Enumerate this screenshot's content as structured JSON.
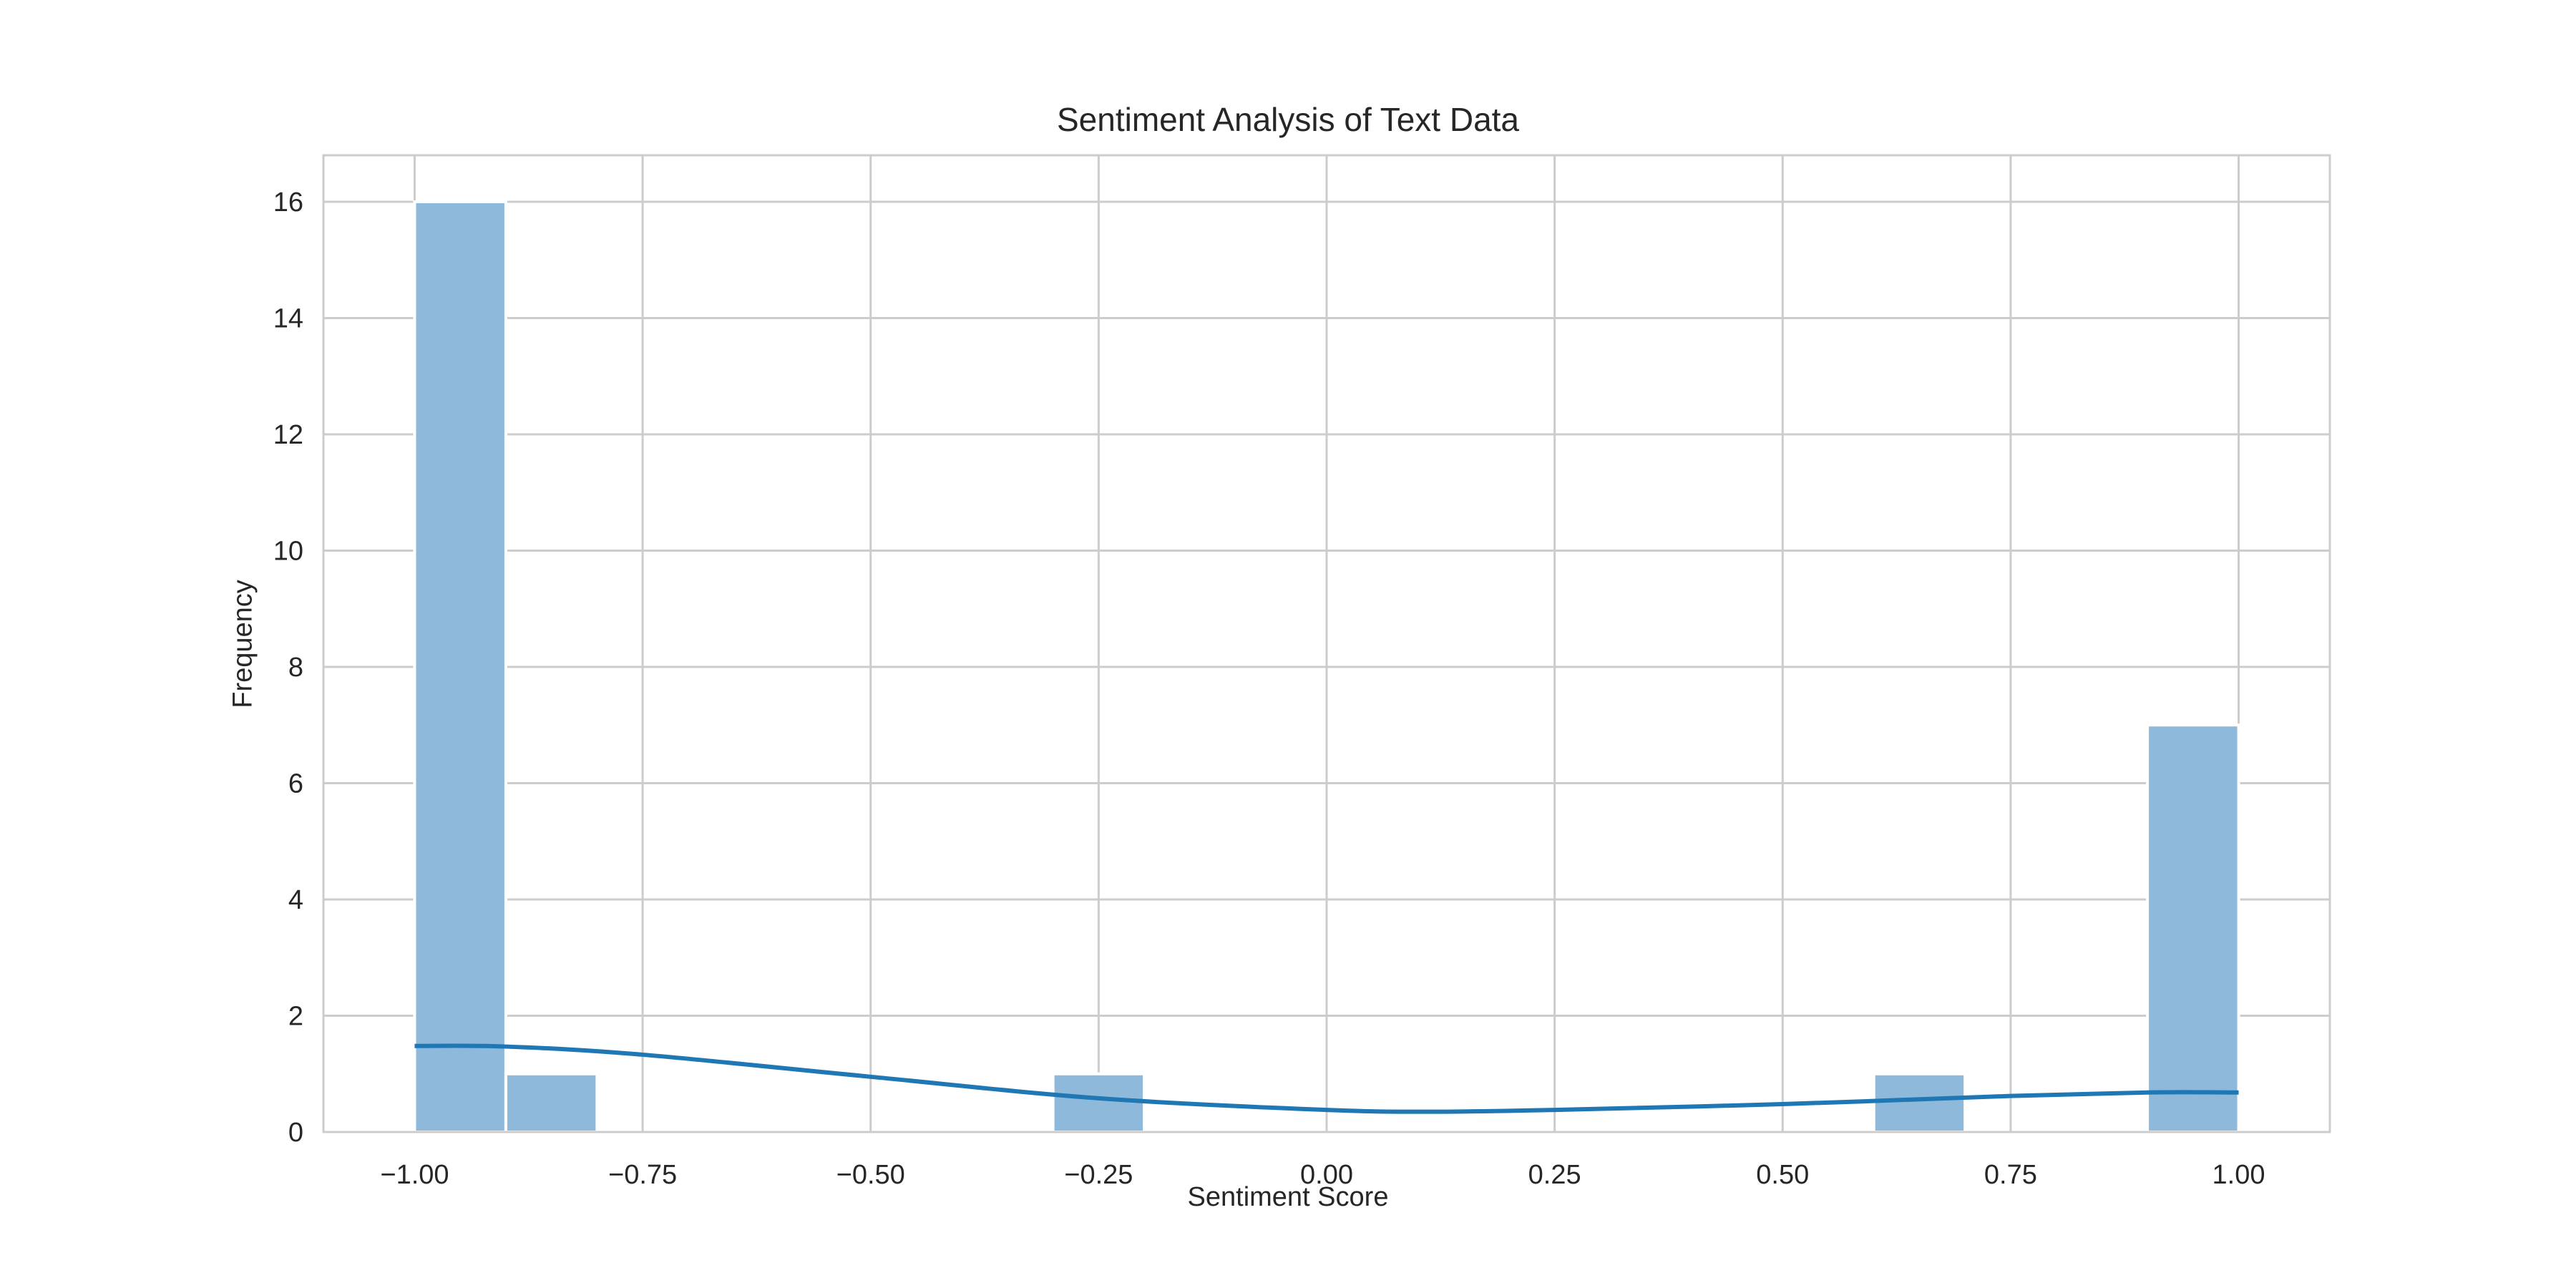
{
  "chart_data": {
    "type": "bar",
    "title": "Sentiment Analysis of Text Data",
    "xlabel": "Sentiment Score",
    "ylabel": "Frequency",
    "xlim": [
      -1.1,
      1.1
    ],
    "ylim": [
      0,
      16.8
    ],
    "x_ticks": [
      {
        "value": -1.0,
        "label": "−1.00"
      },
      {
        "value": -0.75,
        "label": "−0.75"
      },
      {
        "value": -0.5,
        "label": "−0.50"
      },
      {
        "value": -0.25,
        "label": "−0.25"
      },
      {
        "value": 0.0,
        "label": "0.00"
      },
      {
        "value": 0.25,
        "label": "0.25"
      },
      {
        "value": 0.5,
        "label": "0.50"
      },
      {
        "value": 0.75,
        "label": "0.75"
      },
      {
        "value": 1.0,
        "label": "1.00"
      }
    ],
    "y_ticks": [
      {
        "value": 0,
        "label": "0"
      },
      {
        "value": 2,
        "label": "2"
      },
      {
        "value": 4,
        "label": "4"
      },
      {
        "value": 6,
        "label": "6"
      },
      {
        "value": 8,
        "label": "8"
      },
      {
        "value": 10,
        "label": "10"
      },
      {
        "value": 12,
        "label": "12"
      },
      {
        "value": 14,
        "label": "14"
      },
      {
        "value": 16,
        "label": "16"
      }
    ],
    "bin_width": 0.1,
    "bins": [
      {
        "x0": -1.0,
        "x1": -0.9,
        "count": 16
      },
      {
        "x0": -0.9,
        "x1": -0.8,
        "count": 1
      },
      {
        "x0": -0.3,
        "x1": -0.2,
        "count": 1
      },
      {
        "x0": 0.6,
        "x1": 0.7,
        "count": 1
      },
      {
        "x0": 0.9,
        "x1": 1.0,
        "count": 7
      }
    ],
    "kde": {
      "x": [
        -1.0,
        -0.9,
        -0.75,
        -0.5,
        -0.25,
        0.0,
        0.12,
        0.25,
        0.5,
        0.75,
        0.9,
        1.0
      ],
      "y": [
        1.48,
        1.47,
        1.33,
        0.95,
        0.58,
        0.38,
        0.35,
        0.38,
        0.48,
        0.62,
        0.68,
        0.68
      ]
    },
    "grid": true,
    "colors": {
      "bar_fill": "#8fb9da",
      "bar_edge": "#ffffff",
      "kde_line": "#1f77b4",
      "grid": "#cccccc",
      "axes_edge": "#cccccc"
    }
  }
}
